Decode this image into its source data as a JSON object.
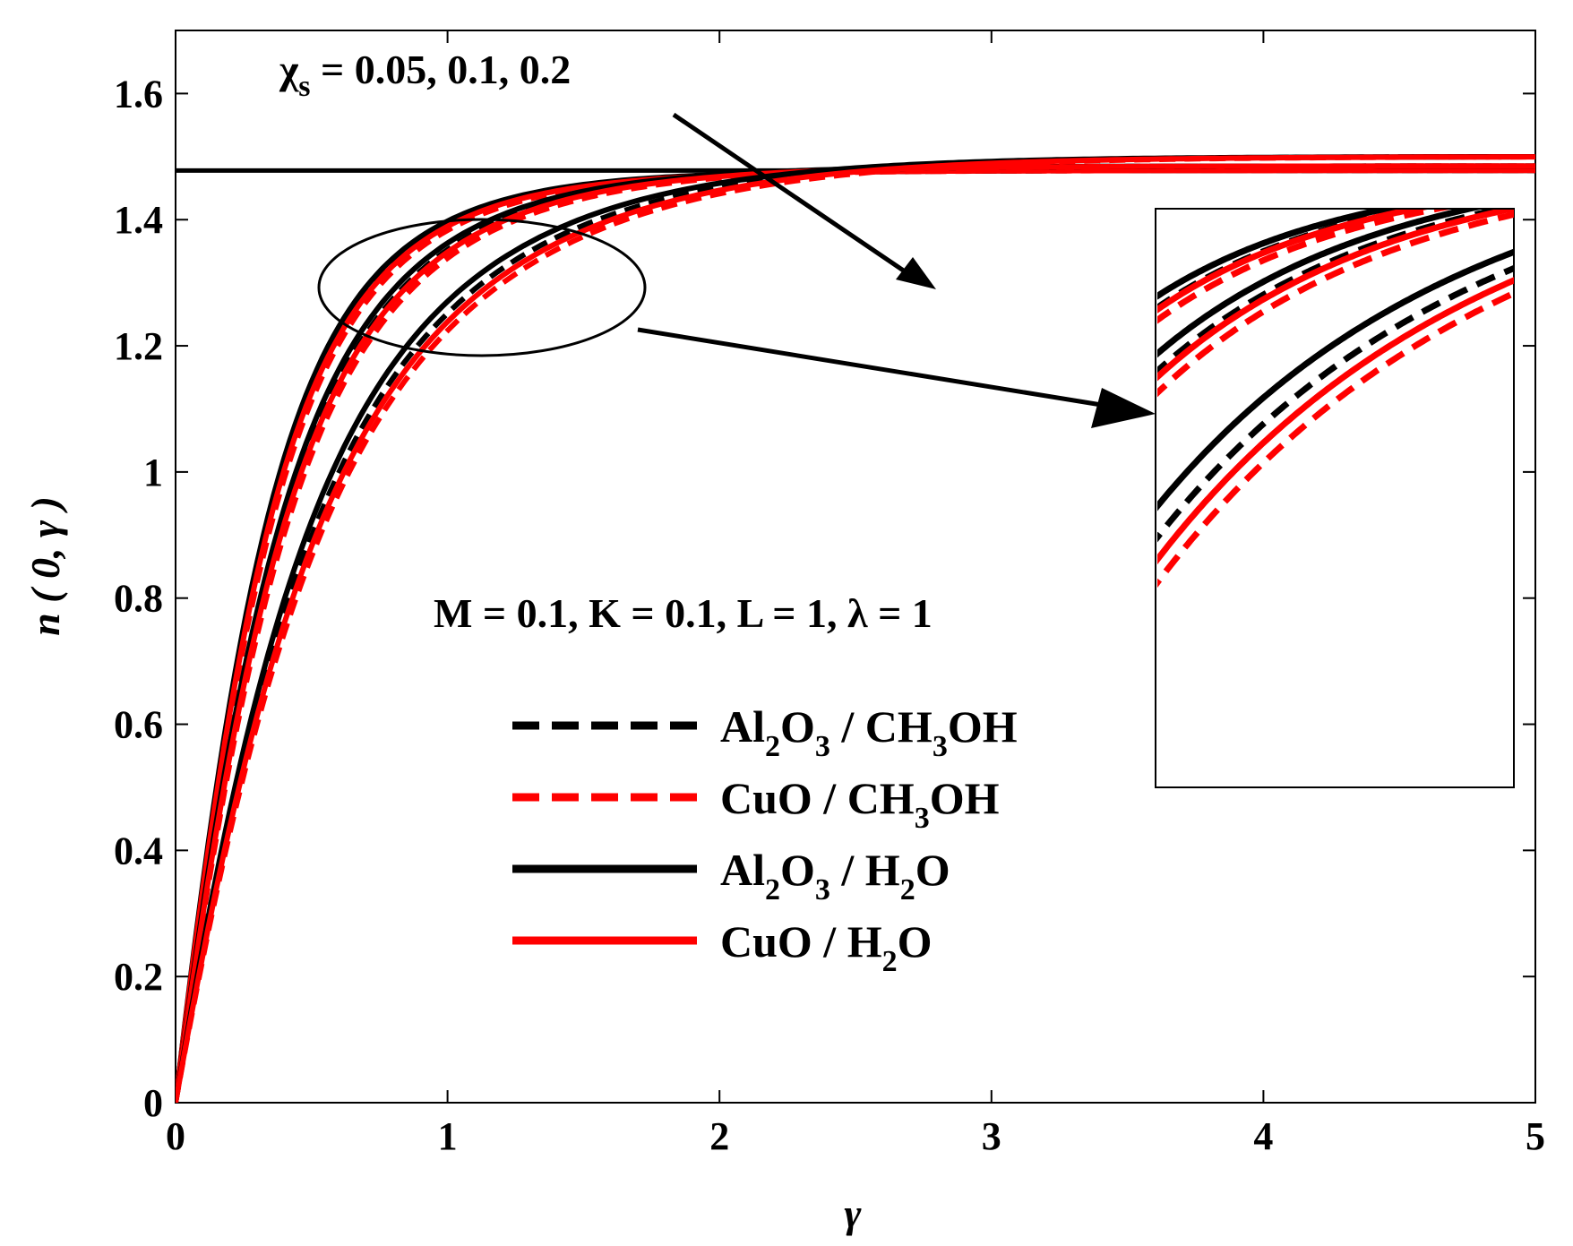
{
  "chart_data": {
    "type": "line",
    "xlabel": "γ",
    "ylabel": "n ( 0, γ )",
    "xlim": [
      0,
      5
    ],
    "ylim": [
      0,
      1.7
    ],
    "xticks": [
      "0",
      "1",
      "2",
      "3",
      "4",
      "5"
    ],
    "yticks": [
      "0",
      "0.2",
      "0.4",
      "0.6",
      "0.8",
      "1",
      "1.2",
      "1.4",
      "1.6"
    ],
    "annotations": {
      "chi_main": "χ",
      "chi_sub": "s",
      "chi_values": " = 0.05, 0.1, 0.2",
      "params": "M = 0.1, K = 0.1, L = 1, λ = 1"
    },
    "colors": {
      "black": "#000000",
      "red": "#ff0000"
    },
    "reference_line": {
      "y": 1.478
    },
    "series": [
      {
        "name": "Al2O3 / CH3OH (χs=0.05)",
        "color": "#000000",
        "dash": true,
        "rate": 2.44,
        "p": 1.56,
        "asym": 1.478
      },
      {
        "name": "CuO / CH3OH (χs=0.05)",
        "color": "#ff0000",
        "dash": true,
        "rate": 2.38,
        "p": 1.56,
        "asym": 1.478
      },
      {
        "name": "Al2O3 / H2O (χs=0.05)",
        "color": "#000000",
        "dash": false,
        "rate": 2.5,
        "p": 1.56,
        "asym": 1.478
      },
      {
        "name": "CuO / H2O (χs=0.05)",
        "color": "#ff0000",
        "dash": false,
        "rate": 2.43,
        "p": 1.56,
        "asym": 1.478
      },
      {
        "name": "Al2O3 / CH3OH (χs=0.1)",
        "color": "#000000",
        "dash": true,
        "rate": 2.14,
        "p": 1.48,
        "asym": 1.485
      },
      {
        "name": "CuO / CH3OH (χs=0.1)",
        "color": "#ff0000",
        "dash": true,
        "rate": 2.07,
        "p": 1.48,
        "asym": 1.485
      },
      {
        "name": "Al2O3 / H2O (χs=0.1)",
        "color": "#000000",
        "dash": false,
        "rate": 2.2,
        "p": 1.48,
        "asym": 1.485
      },
      {
        "name": "CuO / H2O (χs=0.1)",
        "color": "#ff0000",
        "dash": false,
        "rate": 2.12,
        "p": 1.48,
        "asym": 1.485
      },
      {
        "name": "Al2O3 / CH3OH (χs=0.2)",
        "color": "#000000",
        "dash": true,
        "rate": 1.68,
        "p": 1.35,
        "asym": 1.5
      },
      {
        "name": "CuO / CH3OH (χs=0.2)",
        "color": "#ff0000",
        "dash": true,
        "rate": 1.6,
        "p": 1.35,
        "asym": 1.5
      },
      {
        "name": "Al2O3 / H2O (χs=0.2)",
        "color": "#000000",
        "dash": false,
        "rate": 1.74,
        "p": 1.35,
        "asym": 1.5
      },
      {
        "name": "CuO / H2O (χs=0.2)",
        "color": "#ff0000",
        "dash": false,
        "rate": 1.64,
        "p": 1.35,
        "asym": 1.5
      }
    ],
    "legend": [
      {
        "main": "Al",
        "s1": "2",
        "mid": "O",
        "s2": "3",
        "tail": " / CH",
        "s3": "3",
        "end": "OH",
        "color": "#000000",
        "dash": true
      },
      {
        "main": "CuO / CH",
        "s1": "3",
        "mid": "OH",
        "s2": "",
        "tail": "",
        "s3": "",
        "end": "",
        "color": "#ff0000",
        "dash": true
      },
      {
        "main": "Al",
        "s1": "2",
        "mid": "O",
        "s2": "3",
        "tail": " / H",
        "s3": "2",
        "end": "O",
        "color": "#000000",
        "dash": false
      },
      {
        "main": "CuO / H",
        "s1": "2",
        "mid": "O",
        "s2": "",
        "tail": "",
        "s3": "",
        "end": "",
        "color": "#ff0000",
        "dash": false
      }
    ],
    "inset": {
      "xlim": [
        1.0,
        1.65
      ],
      "ylim": [
        1.1,
        1.45
      ]
    }
  }
}
